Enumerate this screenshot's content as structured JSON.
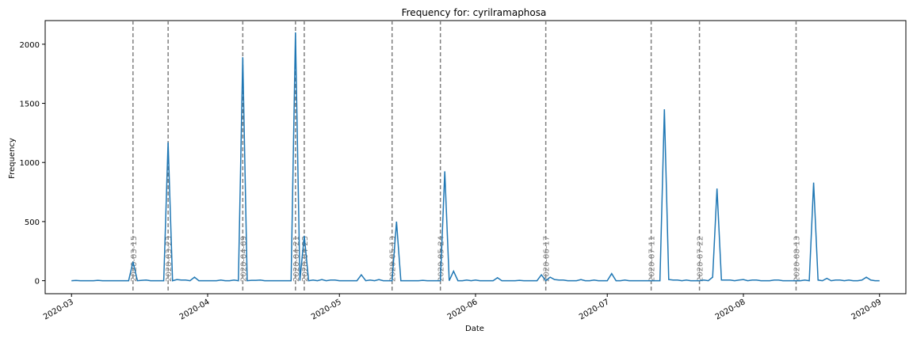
{
  "chart_data": {
    "type": "line",
    "title": "Frequency for: cyrilramaphosa",
    "xlabel": "Date",
    "ylabel": "Frequency",
    "x_range": [
      "2020-02-24",
      "2020-09-07"
    ],
    "ylim": [
      -110,
      2200
    ],
    "line_color": "#1f77b4",
    "event_line_color": "#808080",
    "grid": false,
    "x_ticks": [
      "2020-03",
      "2020-04",
      "2020-05",
      "2020-06",
      "2020-07",
      "2020-08",
      "2020-09"
    ],
    "y_ticks": [
      0,
      500,
      1000,
      1500,
      2000
    ],
    "event_dates": [
      "2020-03-15",
      "2020-03-23",
      "2020-04-09",
      "2020-04-21",
      "2020-04-23",
      "2020-05-13",
      "2020-05-24",
      "2020-06-17",
      "2020-07-11",
      "2020-07-22",
      "2020-08-13"
    ],
    "event_labels": [
      "2020-03-15",
      "2020-03-23",
      "2020-04-09",
      "2020-04-21",
      "2020-04-23",
      "2020-05-13",
      "2020-05-24",
      "2020-06-17",
      "2020-07-11",
      "2020-07-22",
      "2020-08-13"
    ],
    "series": [
      {
        "x_start": "2020-03-01",
        "values": [
          0,
          2,
          0,
          0,
          0,
          0,
          3,
          0,
          0,
          0,
          0,
          0,
          0,
          0,
          160,
          0,
          3,
          5,
          0,
          0,
          0,
          0,
          1170,
          0,
          10,
          5,
          5,
          0,
          30,
          0,
          0,
          0,
          0,
          0,
          5,
          0,
          0,
          5,
          0,
          1890,
          0,
          3,
          3,
          5,
          0,
          0,
          0,
          0,
          0,
          0,
          0,
          2100,
          0,
          380,
          0,
          5,
          0,
          10,
          0,
          5,
          5,
          0,
          0,
          0,
          0,
          0,
          50,
          0,
          5,
          0,
          10,
          0,
          0,
          0,
          500,
          0,
          0,
          0,
          0,
          0,
          3,
          0,
          0,
          0,
          0,
          925,
          0,
          80,
          0,
          0,
          5,
          0,
          5,
          0,
          0,
          0,
          0,
          25,
          0,
          0,
          0,
          0,
          3,
          0,
          0,
          0,
          0,
          50,
          0,
          30,
          10,
          5,
          5,
          0,
          0,
          0,
          10,
          0,
          0,
          5,
          0,
          0,
          0,
          60,
          0,
          0,
          5,
          0,
          0,
          0,
          0,
          0,
          0,
          0,
          0,
          1450,
          10,
          5,
          5,
          0,
          5,
          0,
          0,
          0,
          5,
          0,
          30,
          780,
          5,
          5,
          5,
          0,
          5,
          10,
          0,
          5,
          5,
          0,
          0,
          0,
          5,
          5,
          0,
          0,
          0,
          0,
          0,
          5,
          0,
          830,
          5,
          0,
          20,
          0,
          5,
          5,
          0,
          5,
          0,
          0,
          5,
          30,
          5,
          0,
          0
        ]
      }
    ]
  }
}
